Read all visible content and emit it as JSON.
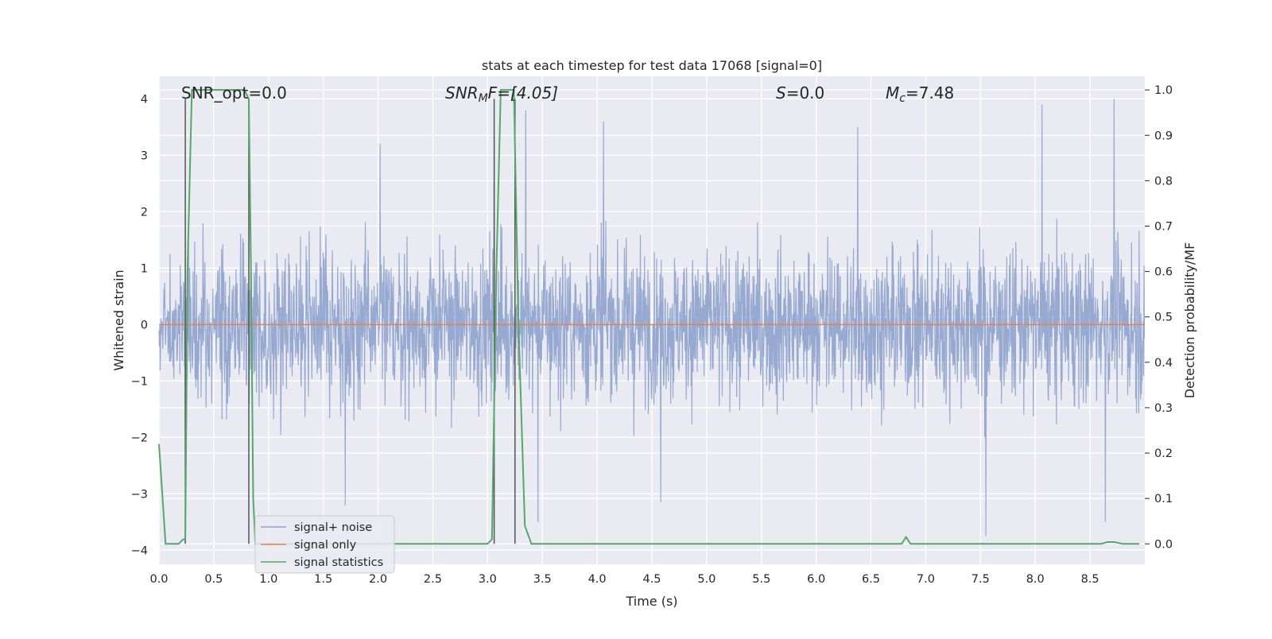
{
  "chart_data": {
    "type": "line",
    "title": "stats at each timestep for test data 17068 [signal=0]",
    "xlabel": "Time (s)",
    "ylabel_left": "Whitened strain",
    "ylabel_right": "Detection probability/MF",
    "xlim": [
      0.0,
      9.0
    ],
    "ylim_left": [
      -4.25,
      4.4
    ],
    "ylim_right": [
      -0.045,
      1.03
    ],
    "x_ticks": [
      "0.0",
      "0.5",
      "1.0",
      "1.5",
      "2.0",
      "2.5",
      "3.0",
      "3.5",
      "4.0",
      "4.5",
      "5.0",
      "5.5",
      "6.0",
      "6.5",
      "7.0",
      "7.5",
      "8.0",
      "8.5"
    ],
    "y_left_ticks": [
      "4",
      "3",
      "2",
      "1",
      "0",
      "−1",
      "−2",
      "−3",
      "−4"
    ],
    "y_right_ticks": [
      "1.0",
      "0.9",
      "0.8",
      "0.7",
      "0.6",
      "0.5",
      "0.4",
      "0.3",
      "0.2",
      "0.1",
      "0.0"
    ],
    "grid": true,
    "legend_position": "lower-left",
    "annotations": {
      "snr_opt": "SNR_opt=0.0",
      "snr_mf_name": "SNR",
      "snr_mf_sub": "M",
      "snr_mf_rest": "F=[4.05]",
      "s_name": "S",
      "s_rest": "=0.0",
      "mc_name": "M",
      "mc_sub": "c",
      "mc_rest": "=7.48"
    },
    "series": [
      {
        "name": "signal+ noise",
        "color": "#8ea2cc",
        "axis": "left",
        "description_envelope": {
          "dense_band": [
            -0.65,
            0.9
          ],
          "typical_upper": [
            1.5,
            2.5
          ],
          "typical_lower": [
            -1.4,
            -2.5
          ],
          "peak_points": [
            {
              "x": 2.02,
              "y": 3.2
            },
            {
              "x": 3.06,
              "y": 3.3
            },
            {
              "x": 3.35,
              "y": 3.8
            },
            {
              "x": 4.06,
              "y": 3.6
            },
            {
              "x": 6.38,
              "y": 3.5
            },
            {
              "x": 8.06,
              "y": 3.9
            },
            {
              "x": 8.72,
              "y": 4.0
            },
            {
              "x": 1.7,
              "y": -3.2
            },
            {
              "x": 3.46,
              "y": -3.5
            },
            {
              "x": 4.58,
              "y": -3.15
            },
            {
              "x": 7.55,
              "y": -3.75
            },
            {
              "x": 8.64,
              "y": -3.5
            }
          ]
        }
      },
      {
        "name": "signal only",
        "color": "#dd8452",
        "axis": "left",
        "x": [
          0.0,
          9.0
        ],
        "y": [
          0.0,
          0.0
        ]
      },
      {
        "name": "signal statistics",
        "color": "#55a868",
        "axis": "right",
        "x": [
          0.0,
          0.06,
          0.18,
          0.22,
          0.24,
          0.26,
          0.3,
          0.4,
          0.78,
          0.82,
          0.84,
          0.86,
          0.88,
          1.0,
          2.0,
          3.0,
          3.04,
          3.08,
          3.12,
          3.18,
          3.24,
          3.28,
          3.34,
          3.4,
          4.0,
          5.0,
          6.0,
          6.78,
          6.82,
          6.86,
          7.0,
          8.0,
          8.6,
          8.66,
          8.72,
          8.8,
          8.95
        ],
        "y": [
          0.22,
          0.0,
          0.0,
          0.01,
          0.01,
          0.6,
          1.0,
          1.0,
          1.0,
          0.98,
          0.6,
          0.1,
          0.0,
          0.0,
          0.0,
          0.0,
          0.01,
          0.6,
          1.0,
          1.0,
          1.0,
          0.5,
          0.04,
          0.0,
          0.0,
          0.0,
          0.0,
          0.0,
          0.015,
          0.0,
          0.0,
          0.0,
          0.0,
          0.004,
          0.004,
          0.0,
          0.0
        ]
      }
    ],
    "vertical_markers_x": [
      0.24,
      0.82,
      3.06,
      3.25
    ]
  }
}
